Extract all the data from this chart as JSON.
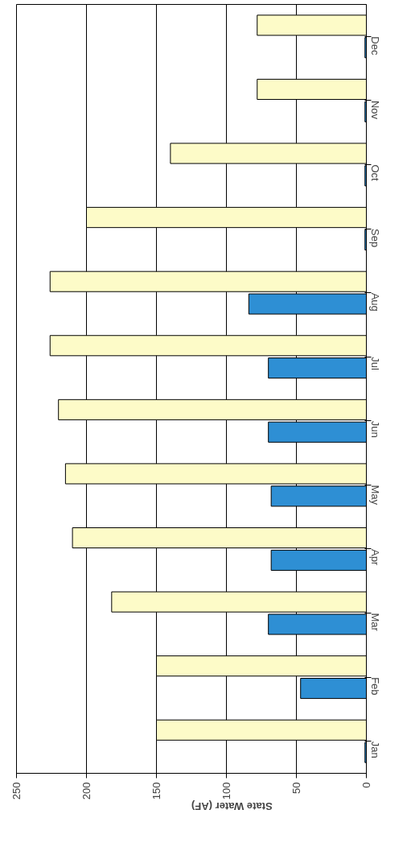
{
  "chart_data": {
    "type": "bar",
    "orientation": "horizontal",
    "xlabel": "State Water (AF)",
    "categories": [
      "Dec",
      "Nov",
      "Oct",
      "Sep",
      "Aug",
      "Jul",
      "Jun",
      "May",
      "Apr",
      "Mar",
      "Feb",
      "Jan"
    ],
    "series": [
      {
        "color": "#fdfbc8",
        "values": [
          78,
          78,
          140,
          200,
          226,
          226,
          220,
          215,
          210,
          182,
          150,
          150
        ]
      },
      {
        "color": "#2e8fd4",
        "values": [
          1,
          1,
          1,
          1,
          84,
          70,
          70,
          68,
          68,
          70,
          47,
          1
        ]
      }
    ],
    "xlim": [
      250,
      0
    ],
    "xticks": [
      0,
      50,
      100,
      150,
      200,
      250
    ],
    "grid": "x"
  }
}
